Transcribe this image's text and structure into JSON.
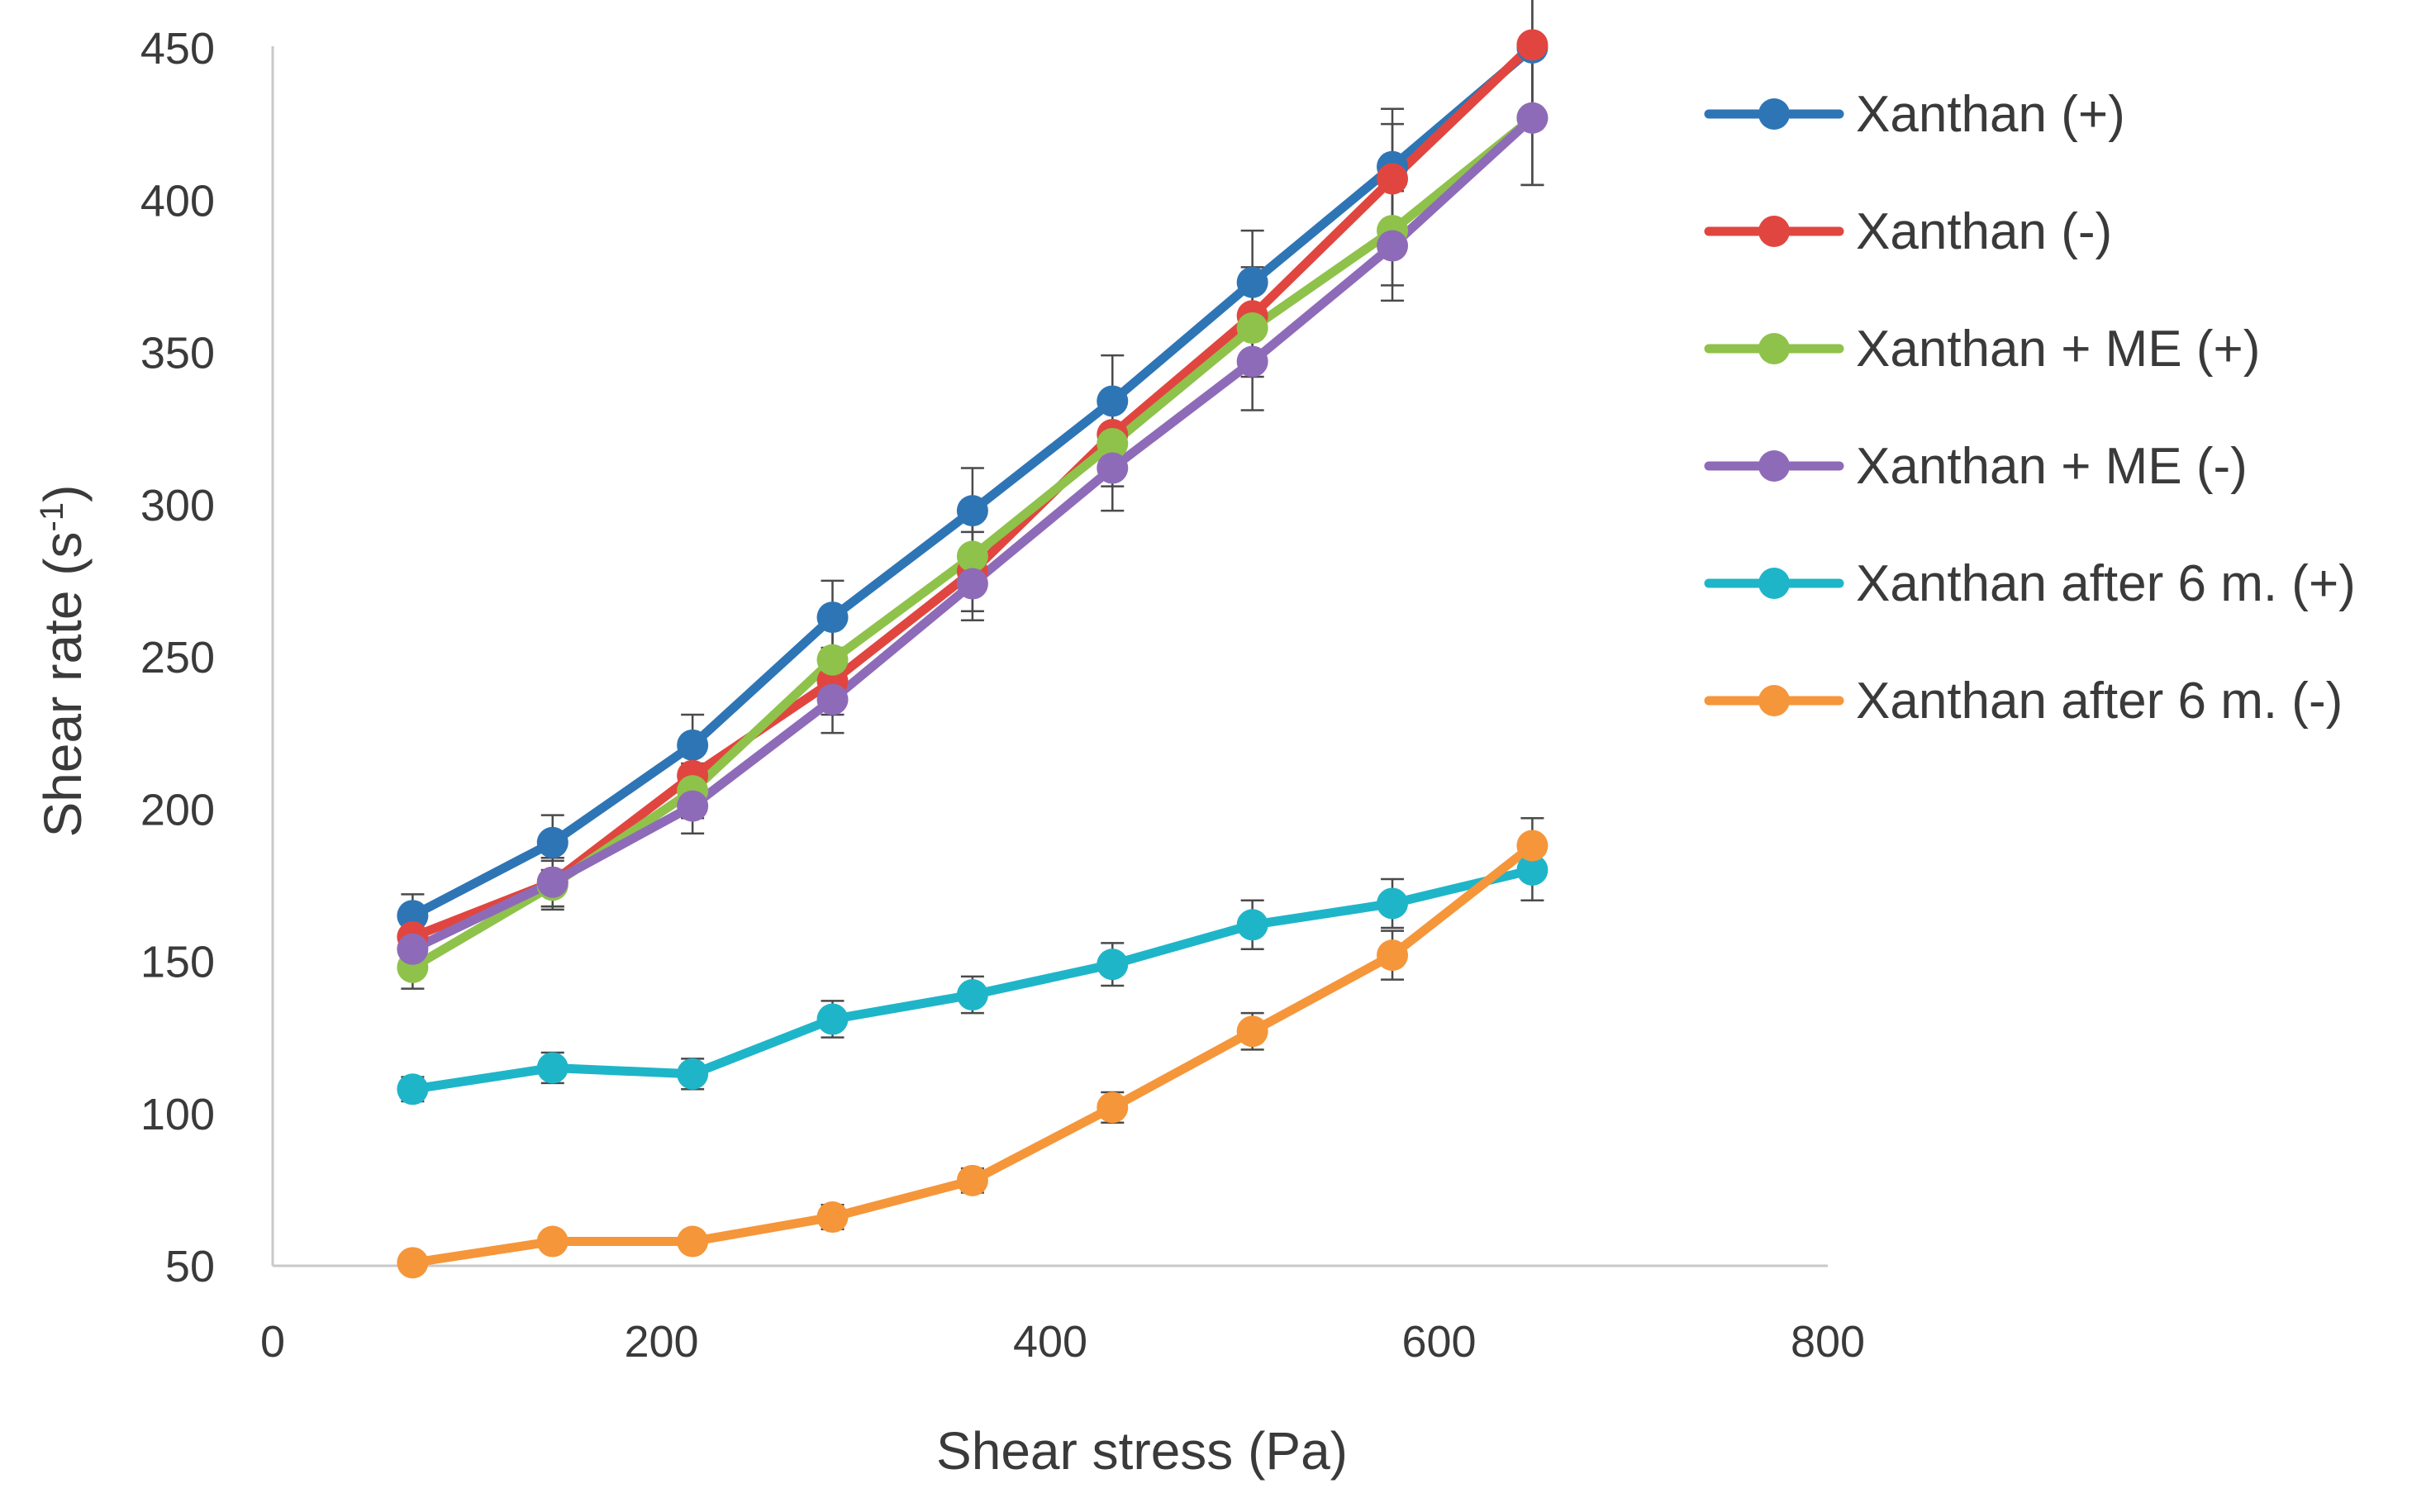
{
  "chart_data": {
    "type": "line",
    "title": "",
    "xlabel": "Shear stress (Pa)",
    "ylabel_main": "Shear rate (s",
    "ylabel_sup": "-1",
    "ylabel_close": ")",
    "xlim": [
      0,
      800
    ],
    "ylim": [
      50,
      450
    ],
    "xticks": [
      0,
      200,
      400,
      600,
      800
    ],
    "yticks": [
      50,
      100,
      150,
      200,
      250,
      300,
      350,
      400,
      450
    ],
    "grid": false,
    "legend_position": "right",
    "x": [
      72,
      144,
      216,
      288,
      360,
      432,
      504,
      576,
      648
    ],
    "series": [
      {
        "name": "Xanthan (+)",
        "color": "#2e75b6",
        "values": [
          165,
          189,
          221,
          263,
          298,
          334,
          373,
          411,
          450
        ],
        "errors": [
          7,
          9,
          10,
          12,
          14,
          15,
          17,
          19,
          23
        ]
      },
      {
        "name": "Xanthan (-)",
        "color": "#e0463f",
        "values": [
          158,
          176,
          211,
          242,
          278,
          323,
          362,
          407,
          451
        ],
        "errors": [
          7,
          8,
          9,
          11,
          13,
          14,
          16,
          18,
          22
        ]
      },
      {
        "name": "Xanthan + ME (+)",
        "color": "#8fc24a",
        "values": [
          148,
          175,
          206,
          249,
          283,
          320,
          358,
          390,
          427
        ],
        "errors": [
          7,
          8,
          9,
          11,
          12,
          14,
          16,
          18,
          22
        ]
      },
      {
        "name": "Xanthan + ME (-)",
        "color": "#8e6bb8",
        "values": [
          154,
          176,
          201,
          236,
          274,
          312,
          347,
          385,
          427
        ],
        "errors": [
          7,
          8,
          9,
          11,
          12,
          14,
          16,
          18,
          22
        ]
      },
      {
        "name": "Xanthan after 6 m. (+)",
        "color": "#1fb5c9",
        "values": [
          108,
          115,
          113,
          131,
          139,
          149,
          162,
          169,
          180
        ],
        "errors": [
          4,
          5,
          5,
          6,
          6,
          7,
          8,
          8,
          10
        ]
      },
      {
        "name": "Xanthan after 6 m. (-)",
        "color": "#f5963a",
        "values": [
          51,
          58,
          58,
          66,
          78,
          102,
          127,
          152,
          188
        ],
        "errors": [
          2,
          3,
          3,
          4,
          4,
          5,
          6,
          8,
          9
        ]
      }
    ]
  }
}
